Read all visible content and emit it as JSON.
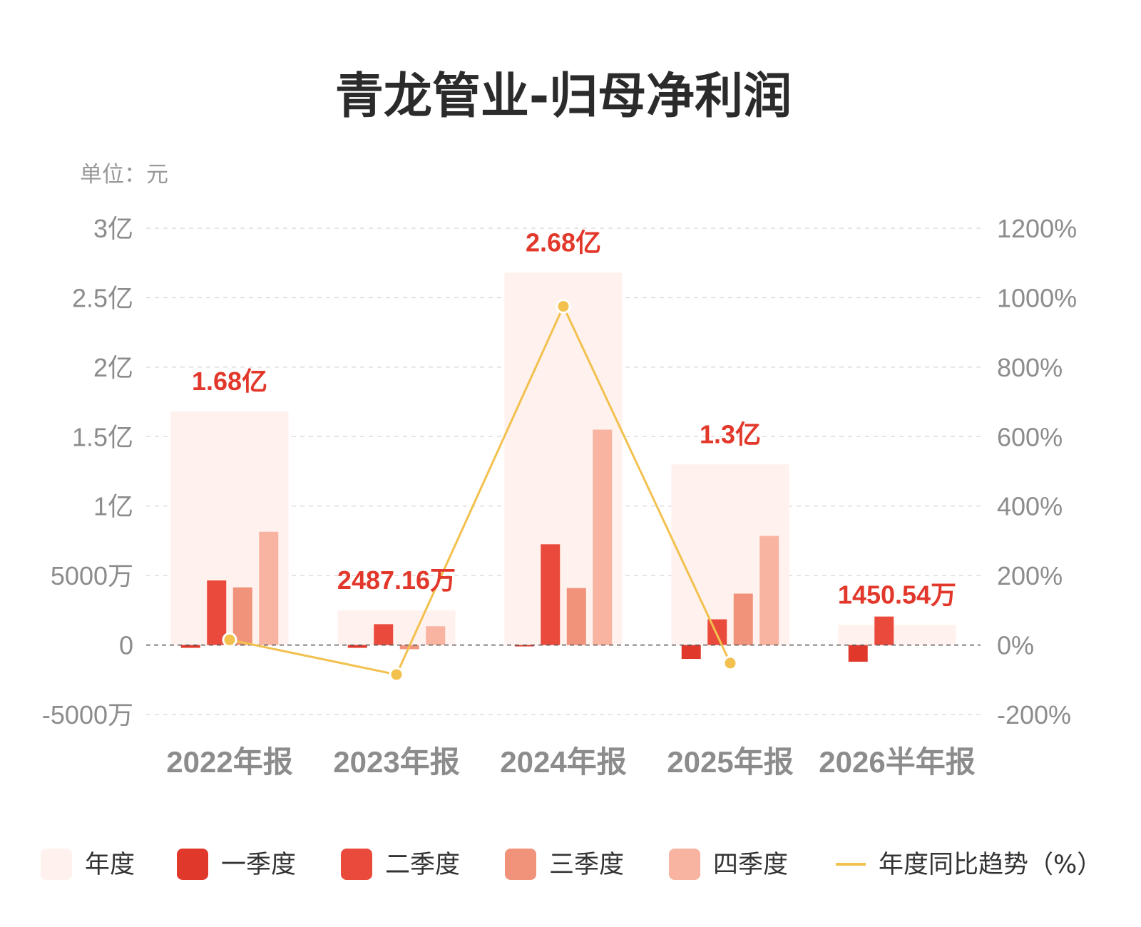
{
  "chart_data": {
    "type": "bar",
    "title": "青龙管业-归母净利润",
    "unit_label": "单位：元",
    "categories": [
      "2022年报",
      "2023年报",
      "2024年报",
      "2025年报",
      "2026半年报"
    ],
    "annual": {
      "name": "年度",
      "values": [
        168000000,
        24871600,
        268000000,
        130000000,
        14505400
      ],
      "labels": [
        "1.68亿",
        "2487.16万",
        "2.68亿",
        "1.3亿",
        "1450.54万"
      ]
    },
    "series": [
      {
        "name": "一季度",
        "values": [
          -2000000,
          -2000000,
          -1000000,
          -10000000,
          -12000000
        ]
      },
      {
        "name": "二季度",
        "values": [
          46500000,
          15000000,
          72500000,
          18500000,
          20500000
        ]
      },
      {
        "name": "三季度",
        "values": [
          41500000,
          -3000000,
          41000000,
          37000000,
          null
        ]
      },
      {
        "name": "四季度",
        "values": [
          81500000,
          13500000,
          155000000,
          78500000,
          null
        ]
      }
    ],
    "yoy": {
      "name": "年度同比趋势（%）",
      "values": [
        15,
        -85,
        975,
        -52,
        null
      ]
    },
    "yaxis_left": {
      "ticks": [
        "3亿",
        "2.5亿",
        "2亿",
        "1.5亿",
        "1亿",
        "5000万",
        "0",
        "-5000万"
      ],
      "ylim": [
        -50000000,
        300000000
      ]
    },
    "yaxis_right": {
      "ticks": [
        "1200%",
        "1000%",
        "800%",
        "600%",
        "400%",
        "200%",
        "0%",
        "-200%"
      ],
      "ylim": [
        -200,
        1200
      ]
    },
    "legend_labels": [
      "年度",
      "一季度",
      "二季度",
      "三季度",
      "四季度",
      "年度同比趋势（%）"
    ],
    "colors": {
      "annual": "#fff1ed",
      "q1": "#e0382b",
      "q2": "#ea4a3c",
      "q3": "#f0937a",
      "q4": "#f9b4a1",
      "yoy": "#f2c14e",
      "label": "#e2382b"
    },
    "legend_position": "bottom",
    "grid": true
  }
}
